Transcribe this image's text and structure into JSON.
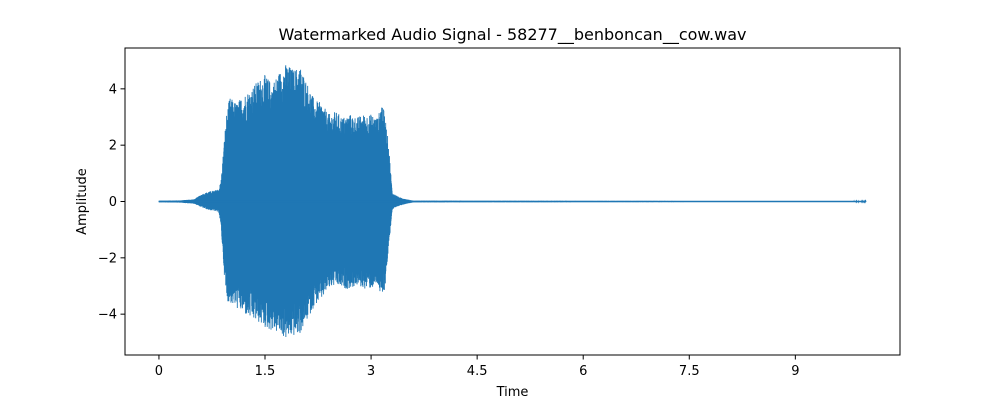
{
  "chart_data": {
    "type": "area",
    "title": "Watermarked Audio Signal - 58277__benboncan__cow.wav",
    "xlabel": "Time",
    "ylabel": "Amplitude",
    "xlim": [
      -0.48,
      10.48
    ],
    "ylim": [
      -5.45,
      5.45
    ],
    "x_ticks": [
      0,
      1.5,
      3,
      4.5,
      6,
      7.5,
      9
    ],
    "x_tick_labels": [
      "0",
      "1.5",
      "3",
      "4.5",
      "6",
      "7.5",
      "9"
    ],
    "y_ticks": [
      -4,
      -2,
      0,
      2,
      4
    ],
    "y_tick_labels": [
      "−4",
      "−2",
      "0",
      "2",
      "4"
    ],
    "grid": false,
    "series": [
      {
        "color": "#1f77b4",
        "x_range": [
          0,
          10
        ],
        "envelope": {
          "x": [
            0,
            0.3,
            0.5,
            0.6,
            0.7,
            0.8,
            0.85,
            0.88,
            0.95,
            1.0,
            1.1,
            1.2,
            1.3,
            1.4,
            1.5,
            1.6,
            1.7,
            1.8,
            1.9,
            2.0,
            2.1,
            2.2,
            2.3,
            2.4,
            2.5,
            2.6,
            2.7,
            2.8,
            2.9,
            3.0,
            3.1,
            3.15,
            3.2,
            3.25,
            3.3,
            3.4,
            3.5,
            3.6,
            10
          ],
          "upper": [
            0.03,
            0.04,
            0.08,
            0.25,
            0.35,
            0.4,
            0.45,
            0.8,
            3.0,
            3.7,
            3.5,
            3.8,
            4.0,
            4.3,
            4.5,
            4.2,
            4.6,
            4.9,
            4.7,
            4.8,
            4.2,
            3.6,
            3.5,
            3.1,
            3.2,
            3.0,
            3.1,
            3.0,
            3.1,
            3.1,
            3.0,
            3.6,
            3.0,
            2.0,
            0.3,
            0.15,
            0.08,
            0.03,
            0.01
          ],
          "lower": [
            -0.03,
            -0.04,
            -0.08,
            -0.2,
            -0.3,
            -0.35,
            -0.4,
            -1.0,
            -3.5,
            -3.6,
            -3.8,
            -4.0,
            -4.2,
            -4.3,
            -4.5,
            -4.6,
            -4.7,
            -4.9,
            -4.8,
            -4.7,
            -4.2,
            -3.7,
            -3.5,
            -3.1,
            -3.0,
            -3.1,
            -3.1,
            -3.0,
            -3.1,
            -3.1,
            -3.0,
            -3.6,
            -3.0,
            -1.6,
            -0.3,
            -0.15,
            -0.08,
            -0.03,
            -0.01
          ]
        }
      }
    ]
  }
}
